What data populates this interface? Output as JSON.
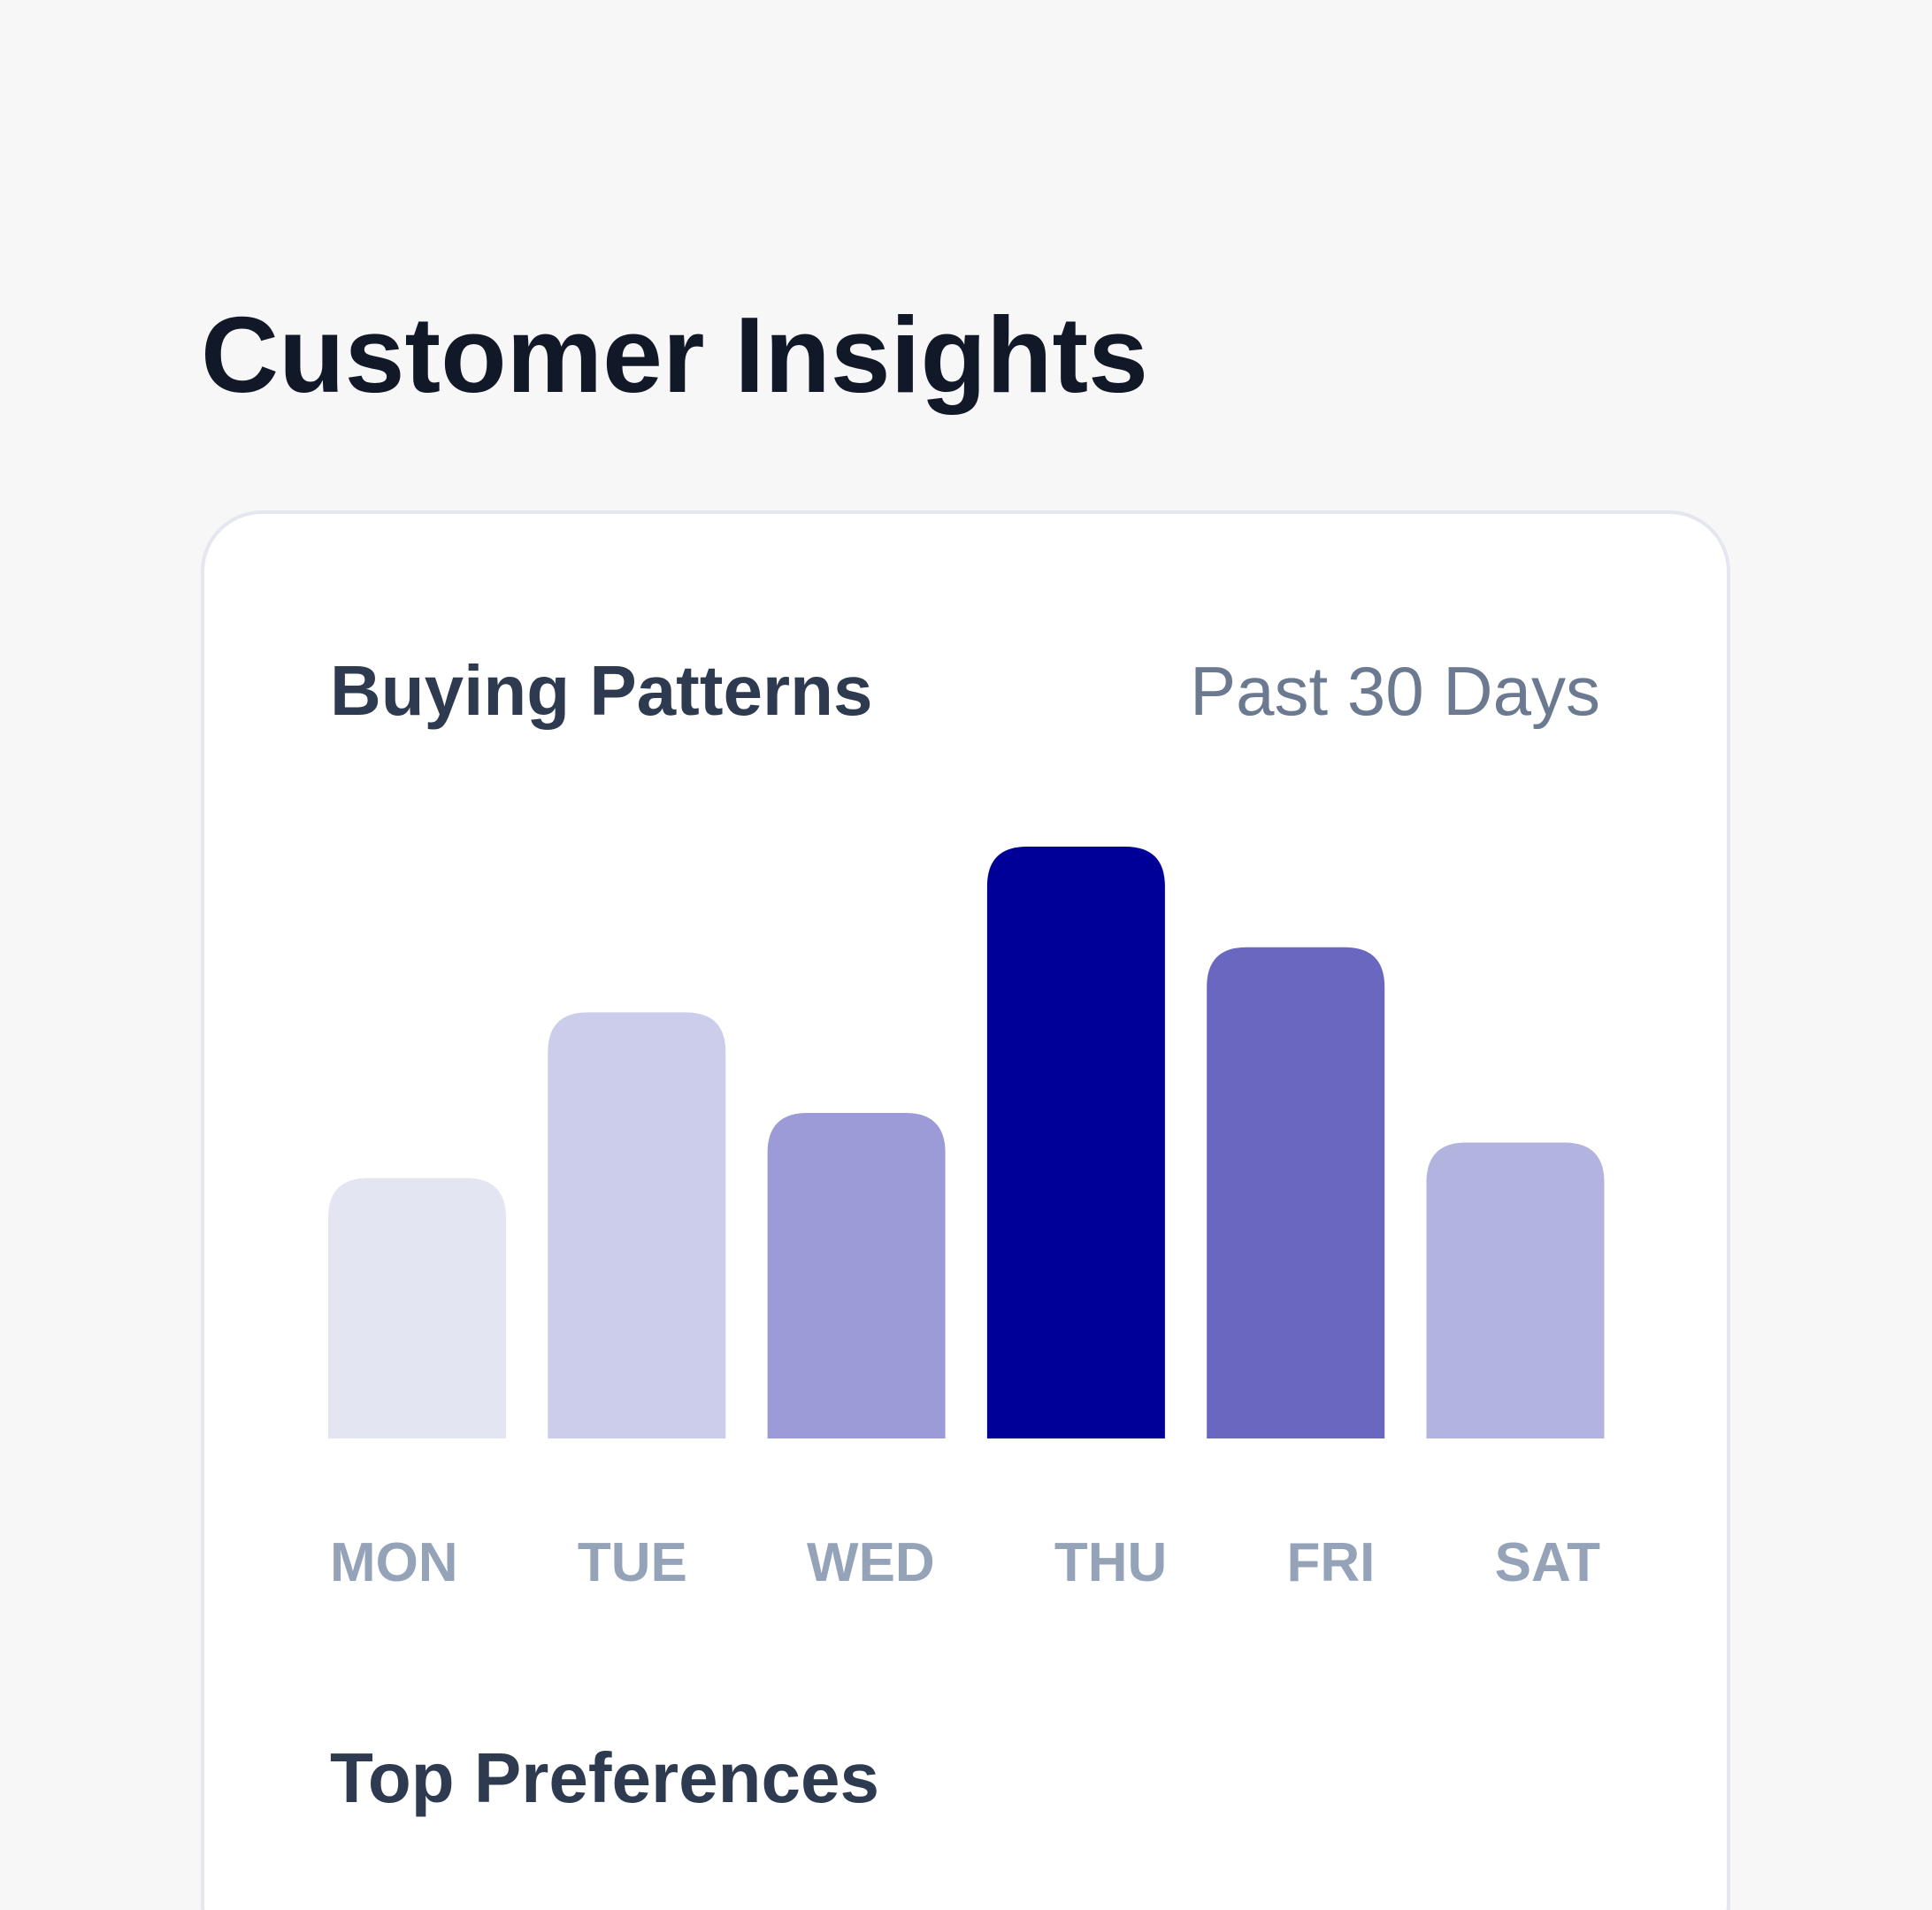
{
  "header": {
    "title": "Customer Insights"
  },
  "chart_data": {
    "type": "bar",
    "title": "Buying Patterns",
    "subtitle": "Past 30 Days",
    "categories": [
      "MON",
      "TUE",
      "WED",
      "THU",
      "FRI",
      "SAT"
    ],
    "values": [
      44,
      72,
      55,
      100,
      83,
      50
    ],
    "colors": [
      "#e3e5f3",
      "#cccdea",
      "#9c9bd7",
      "#000099",
      "#6967c0",
      "#b3b3e0"
    ]
  },
  "section": {
    "title": "Top Preferences"
  }
}
